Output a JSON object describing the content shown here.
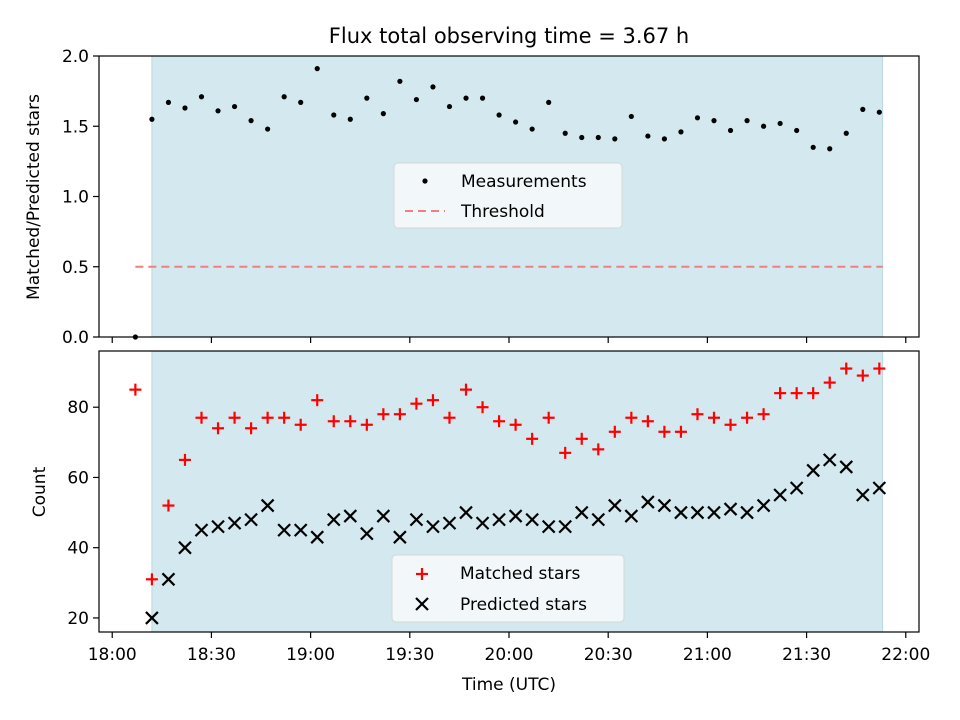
{
  "title": "Flux total observing time = 3.67 h",
  "colors": {
    "observing_window": "#d3e9ef",
    "measurement": "#000000",
    "threshold": "#f07f7f",
    "matched": "#ff0000",
    "predicted": "#000000"
  },
  "chart_data": [
    {
      "type": "scatter",
      "ylabel": "Matched/Predicted stars",
      "ylim": [
        0,
        2
      ],
      "yticks": [
        "0.0",
        "0.5",
        "1.0",
        "1.5",
        "2.0"
      ],
      "observing_window": [
        "18:12",
        "21:53"
      ],
      "threshold": {
        "name": "Threshold",
        "value": 0.5,
        "x": [
          "18:07",
          "21:53"
        ]
      },
      "legend": {
        "position": "center",
        "entries": [
          "Measurements",
          "Threshold"
        ]
      },
      "series": [
        {
          "name": "Measurements",
          "points": [
            [
              "18:07",
              0.0
            ],
            [
              "18:12",
              1.55
            ],
            [
              "18:17",
              1.67
            ],
            [
              "18:22",
              1.63
            ],
            [
              "18:27",
              1.71
            ],
            [
              "18:32",
              1.61
            ],
            [
              "18:37",
              1.64
            ],
            [
              "18:42",
              1.54
            ],
            [
              "18:47",
              1.48
            ],
            [
              "18:52",
              1.71
            ],
            [
              "18:57",
              1.67
            ],
            [
              "19:02",
              1.91
            ],
            [
              "19:07",
              1.58
            ],
            [
              "19:12",
              1.55
            ],
            [
              "19:17",
              1.7
            ],
            [
              "19:22",
              1.59
            ],
            [
              "19:27",
              1.82
            ],
            [
              "19:32",
              1.69
            ],
            [
              "19:37",
              1.78
            ],
            [
              "19:42",
              1.64
            ],
            [
              "19:47",
              1.7
            ],
            [
              "19:52",
              1.7
            ],
            [
              "19:57",
              1.58
            ],
            [
              "20:02",
              1.53
            ],
            [
              "20:07",
              1.48
            ],
            [
              "20:12",
              1.67
            ],
            [
              "20:17",
              1.45
            ],
            [
              "20:22",
              1.42
            ],
            [
              "20:27",
              1.42
            ],
            [
              "20:32",
              1.41
            ],
            [
              "20:37",
              1.57
            ],
            [
              "20:42",
              1.43
            ],
            [
              "20:47",
              1.41
            ],
            [
              "20:52",
              1.46
            ],
            [
              "20:57",
              1.56
            ],
            [
              "21:02",
              1.54
            ],
            [
              "21:07",
              1.47
            ],
            [
              "21:12",
              1.54
            ],
            [
              "21:17",
              1.5
            ],
            [
              "21:22",
              1.52
            ],
            [
              "21:27",
              1.47
            ],
            [
              "21:32",
              1.35
            ],
            [
              "21:37",
              1.34
            ],
            [
              "21:42",
              1.45
            ],
            [
              "21:47",
              1.62
            ],
            [
              "21:52",
              1.6
            ]
          ]
        }
      ]
    },
    {
      "type": "scatter",
      "xlabel": "Time (UTC)",
      "ylabel": "Count",
      "xlim": [
        "17:56",
        "22:04"
      ],
      "xticks": [
        "18:00",
        "18:30",
        "19:00",
        "19:30",
        "20:00",
        "20:30",
        "21:00",
        "21:30",
        "22:00"
      ],
      "ylim": [
        16,
        96
      ],
      "yticks": [
        "20",
        "40",
        "60",
        "80"
      ],
      "observing_window": [
        "18:12",
        "21:53"
      ],
      "legend": {
        "position": "lower center",
        "entries": [
          "Matched stars",
          "Predicted stars"
        ]
      },
      "series": [
        {
          "name": "Matched stars",
          "marker": "plus",
          "points": [
            [
              "18:07",
              85
            ],
            [
              "18:12",
              31
            ],
            [
              "18:17",
              52
            ],
            [
              "18:22",
              65
            ],
            [
              "18:27",
              77
            ],
            [
              "18:32",
              74
            ],
            [
              "18:37",
              77
            ],
            [
              "18:42",
              74
            ],
            [
              "18:47",
              77
            ],
            [
              "18:52",
              77
            ],
            [
              "18:57",
              75
            ],
            [
              "19:02",
              82
            ],
            [
              "19:07",
              76
            ],
            [
              "19:12",
              76
            ],
            [
              "19:17",
              75
            ],
            [
              "19:22",
              78
            ],
            [
              "19:27",
              78
            ],
            [
              "19:32",
              81
            ],
            [
              "19:37",
              82
            ],
            [
              "19:42",
              77
            ],
            [
              "19:47",
              85
            ],
            [
              "19:52",
              80
            ],
            [
              "19:57",
              76
            ],
            [
              "20:02",
              75
            ],
            [
              "20:07",
              71
            ],
            [
              "20:12",
              77
            ],
            [
              "20:17",
              67
            ],
            [
              "20:22",
              71
            ],
            [
              "20:27",
              68
            ],
            [
              "20:32",
              73
            ],
            [
              "20:37",
              77
            ],
            [
              "20:42",
              76
            ],
            [
              "20:47",
              73
            ],
            [
              "20:52",
              73
            ],
            [
              "20:57",
              78
            ],
            [
              "21:02",
              77
            ],
            [
              "21:07",
              75
            ],
            [
              "21:12",
              77
            ],
            [
              "21:17",
              78
            ],
            [
              "21:22",
              84
            ],
            [
              "21:27",
              84
            ],
            [
              "21:32",
              84
            ],
            [
              "21:37",
              87
            ],
            [
              "21:42",
              91
            ],
            [
              "21:47",
              89
            ],
            [
              "21:52",
              91
            ]
          ]
        },
        {
          "name": "Predicted stars",
          "marker": "x",
          "points": [
            [
              "18:12",
              20
            ],
            [
              "18:17",
              31
            ],
            [
              "18:22",
              40
            ],
            [
              "18:27",
              45
            ],
            [
              "18:32",
              46
            ],
            [
              "18:37",
              47
            ],
            [
              "18:42",
              48
            ],
            [
              "18:47",
              52
            ],
            [
              "18:52",
              45
            ],
            [
              "18:57",
              45
            ],
            [
              "19:02",
              43
            ],
            [
              "19:07",
              48
            ],
            [
              "19:12",
              49
            ],
            [
              "19:17",
              44
            ],
            [
              "19:22",
              49
            ],
            [
              "19:27",
              43
            ],
            [
              "19:32",
              48
            ],
            [
              "19:37",
              46
            ],
            [
              "19:42",
              47
            ],
            [
              "19:47",
              50
            ],
            [
              "19:52",
              47
            ],
            [
              "19:57",
              48
            ],
            [
              "20:02",
              49
            ],
            [
              "20:07",
              48
            ],
            [
              "20:12",
              46
            ],
            [
              "20:17",
              46
            ],
            [
              "20:22",
              50
            ],
            [
              "20:27",
              48
            ],
            [
              "20:32",
              52
            ],
            [
              "20:37",
              49
            ],
            [
              "20:42",
              53
            ],
            [
              "20:47",
              52
            ],
            [
              "20:52",
              50
            ],
            [
              "20:57",
              50
            ],
            [
              "21:02",
              50
            ],
            [
              "21:07",
              51
            ],
            [
              "21:12",
              50
            ],
            [
              "21:17",
              52
            ],
            [
              "21:22",
              55
            ],
            [
              "21:27",
              57
            ],
            [
              "21:32",
              62
            ],
            [
              "21:37",
              65
            ],
            [
              "21:42",
              63
            ],
            [
              "21:47",
              55
            ],
            [
              "21:52",
              57
            ]
          ]
        }
      ]
    }
  ]
}
